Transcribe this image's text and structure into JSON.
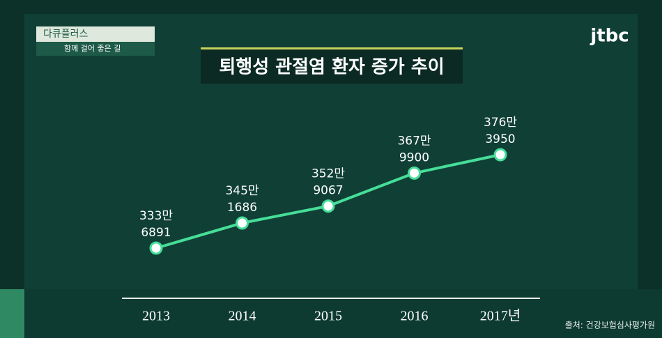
{
  "header": {
    "program": "다큐플러스",
    "episode": "함께 걸어 좋은 길",
    "logo": "jtbc"
  },
  "chart_data": {
    "type": "line",
    "title": "퇴행성 관절염 환자 증가 추이",
    "categories": [
      "2013",
      "2014",
      "2015",
      "2016",
      "2017년"
    ],
    "series": [
      {
        "color": "#46dd98",
        "values": [
          3336891,
          3451686,
          3529067,
          3679900,
          3763950
        ],
        "value_labels": [
          [
            "333만",
            "6891"
          ],
          [
            "345만",
            "1686"
          ],
          [
            "352만",
            "9067"
          ],
          [
            "367만",
            "9900"
          ],
          [
            "376만",
            "3950"
          ]
        ]
      }
    ],
    "source": "출처: 건강보험심사평가원"
  }
}
